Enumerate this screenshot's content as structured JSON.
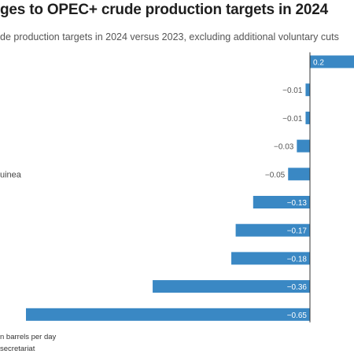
{
  "chart_data": {
    "type": "bar",
    "orientation": "horizontal",
    "title": "ges to OPEC+ crude production targets in 2024",
    "subtitle": "de production targets in 2024 versus 2023, excluding additional voluntary cuts",
    "categories": [
      "",
      "",
      "",
      "",
      "uinea",
      "",
      "",
      "",
      "",
      ""
    ],
    "values": [
      0.2,
      -0.01,
      -0.01,
      -0.03,
      -0.05,
      -0.13,
      -0.17,
      -0.18,
      -0.36,
      -0.65
    ],
    "value_labels": [
      "0.2",
      "−0.01",
      "−0.01",
      "−0.03",
      "−0.05",
      "−0.13",
      "−0.17",
      "−0.18",
      "−0.36",
      "−0.65"
    ],
    "note": "n barrels per day",
    "source": "secretariat",
    "xlim": [
      -0.65,
      0.2
    ],
    "grid": false,
    "bar_color": "#3a88c4",
    "axis_color": "#333333"
  }
}
